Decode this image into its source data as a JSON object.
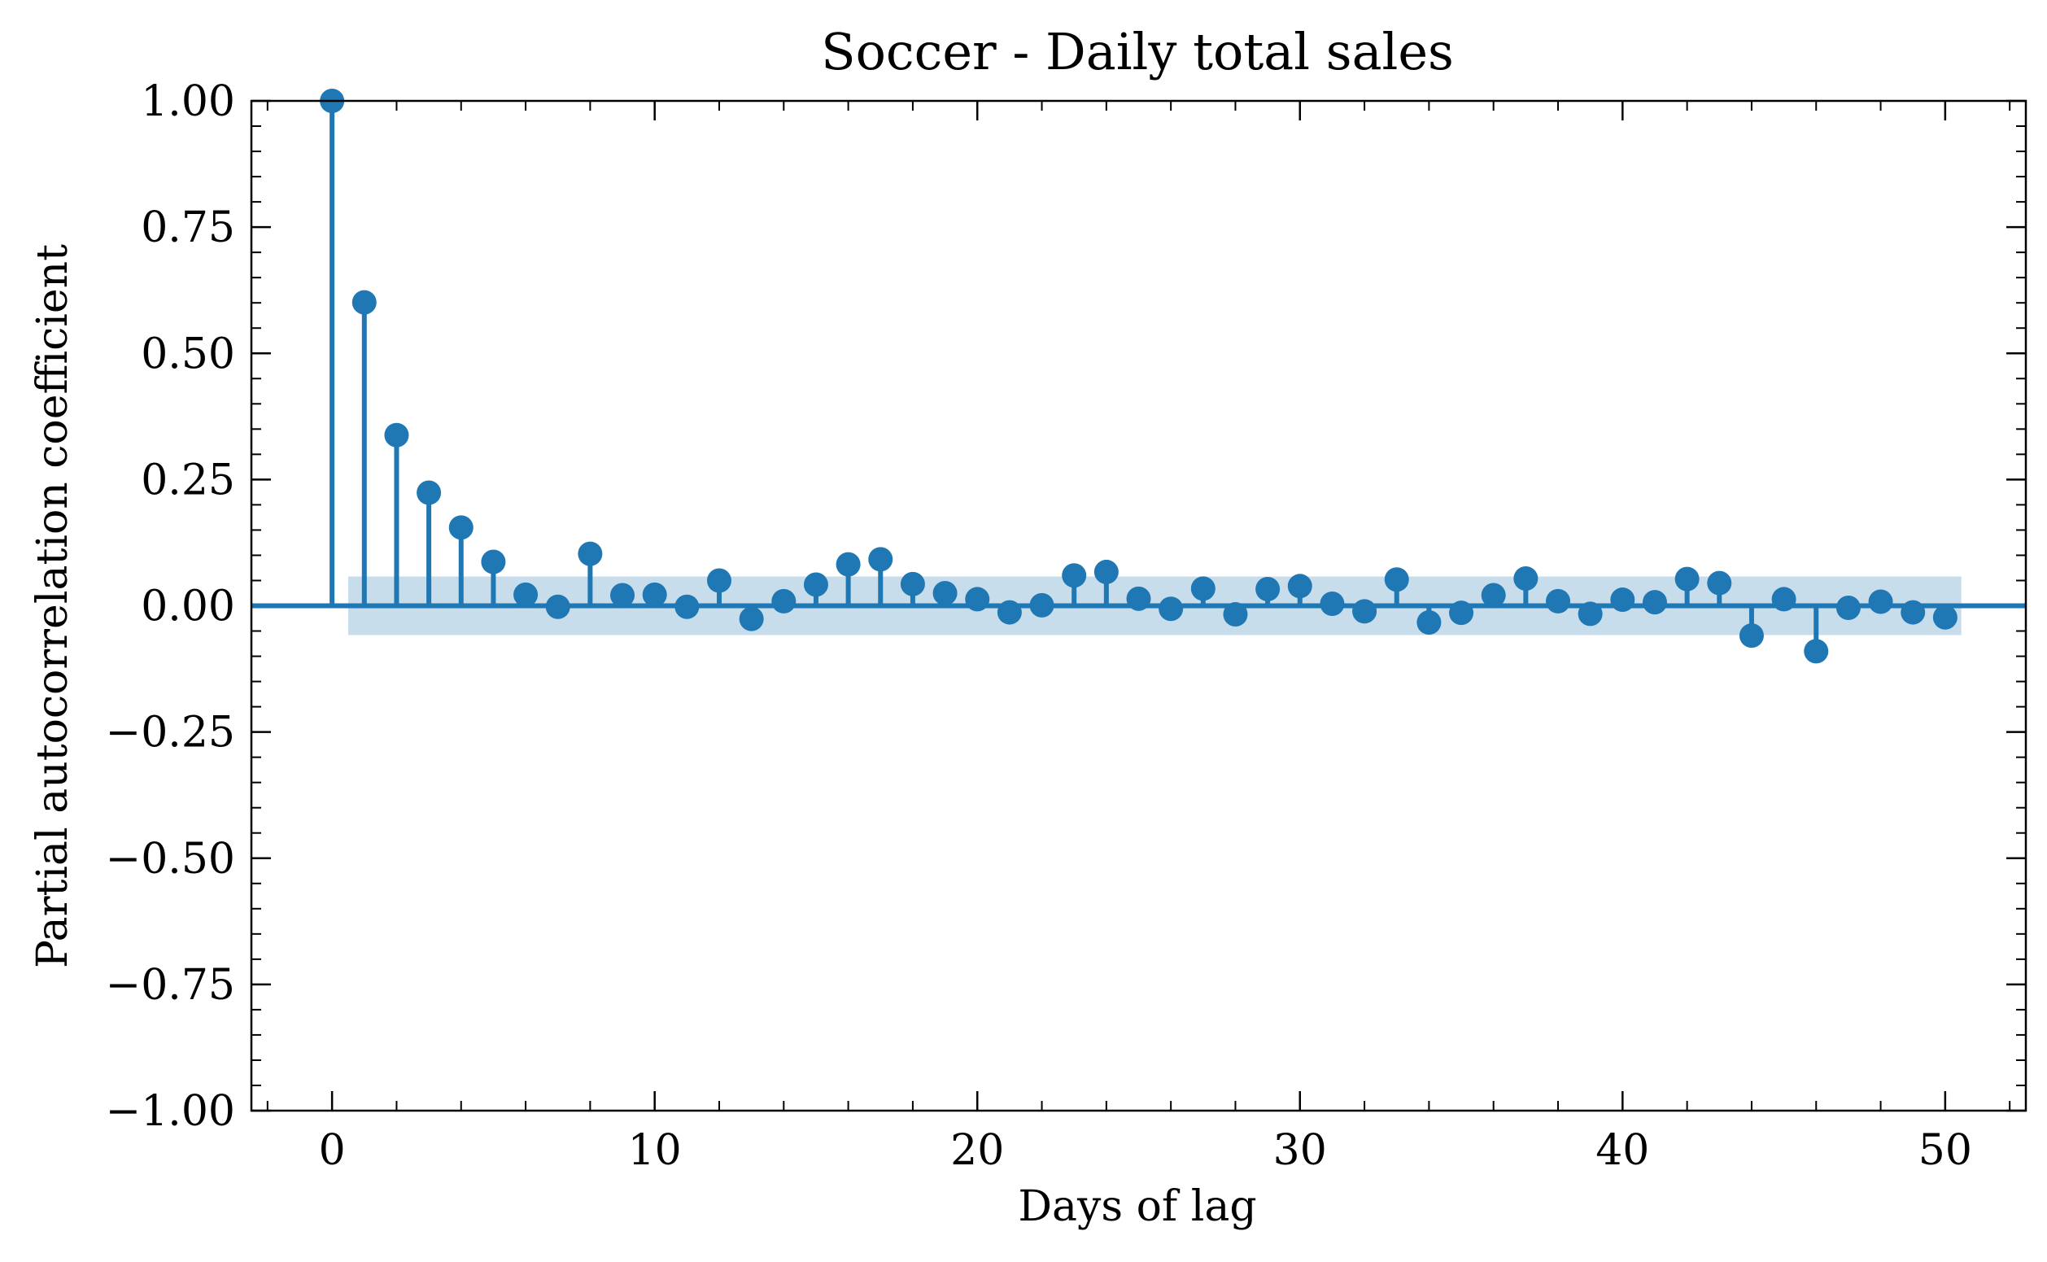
{
  "chart_data": {
    "type": "stem",
    "title": "Soccer - Daily total sales",
    "xlabel": "Days of lag",
    "ylabel": "Partial autocorrelation coefficient",
    "xlim": [
      -2.5,
      52.5
    ],
    "ylim": [
      -1.0,
      1.0
    ],
    "x_ticks": [
      0,
      10,
      20,
      30,
      40,
      50
    ],
    "x_tick_labels": [
      "0",
      "10",
      "20",
      "30",
      "40",
      "50"
    ],
    "x_minor_step": 2,
    "y_ticks": [
      -1.0,
      -0.75,
      -0.5,
      -0.25,
      0.0,
      0.25,
      0.5,
      0.75,
      1.0
    ],
    "y_tick_labels": [
      "−1.00",
      "−0.75",
      "−0.50",
      "−0.25",
      "0.00",
      "0.25",
      "0.50",
      "0.75",
      "1.00"
    ],
    "y_minor_step": 0.05,
    "grid": false,
    "ticks_direction": "in",
    "confidence_band": {
      "x_start": 0.5,
      "x_end": 50.5,
      "upper": 0.058,
      "lower": -0.058
    },
    "lags": [
      0,
      1,
      2,
      3,
      4,
      5,
      6,
      7,
      8,
      9,
      10,
      11,
      12,
      13,
      14,
      15,
      16,
      17,
      18,
      19,
      20,
      21,
      22,
      23,
      24,
      25,
      26,
      27,
      28,
      29,
      30,
      31,
      32,
      33,
      34,
      35,
      36,
      37,
      38,
      39,
      40,
      41,
      42,
      43,
      44,
      45,
      46,
      47,
      48,
      49,
      50
    ],
    "values": [
      1.0,
      0.601,
      0.338,
      0.224,
      0.155,
      0.087,
      0.022,
      -0.002,
      0.103,
      0.021,
      0.022,
      -0.002,
      0.05,
      -0.026,
      0.009,
      0.042,
      0.082,
      0.092,
      0.043,
      0.025,
      0.013,
      -0.013,
      0.001,
      0.06,
      0.067,
      0.014,
      -0.006,
      0.034,
      -0.017,
      0.033,
      0.039,
      0.004,
      -0.011,
      0.052,
      -0.033,
      -0.014,
      0.021,
      0.054,
      0.009,
      -0.016,
      0.012,
      0.007,
      0.053,
      0.045,
      -0.059,
      0.013,
      -0.09,
      -0.004,
      0.008,
      -0.013,
      -0.023
    ]
  },
  "colors": {
    "series": "#1f77b4",
    "band": "#1f77b4",
    "axes": "#000000"
  }
}
